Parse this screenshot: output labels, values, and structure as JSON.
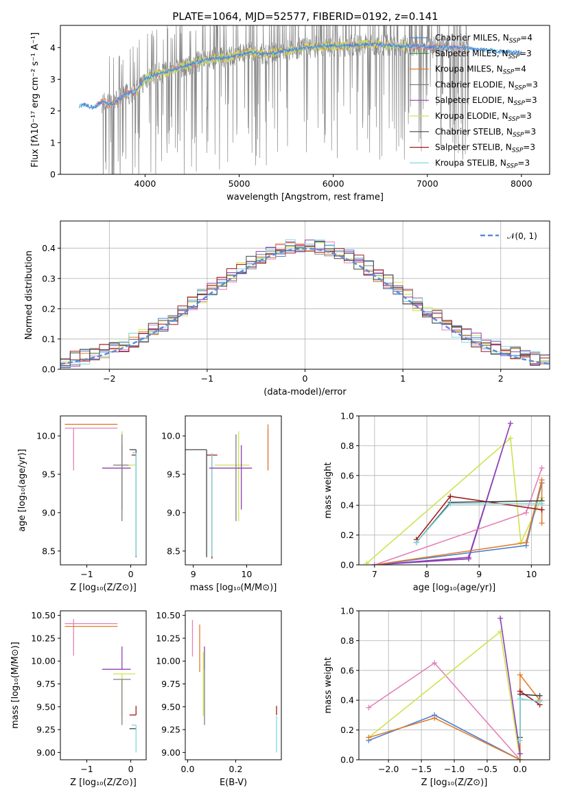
{
  "title": "PLATE=1064, MJD=52577, FIBERID=0192, z=0.141",
  "colors": {
    "chabrier_miles": "#4f7fd0",
    "salpeter_miles": "#2b8a2b",
    "kroupa_miles": "#e07d2c",
    "chabrier_elodie": "#7f7f7f",
    "salpeter_elodie": "#8d3fb4",
    "kroupa_elodie": "#cde34e",
    "chabrier_stelib": "#444444",
    "salpeter_stelib": "#a01818",
    "kroupa_stelib": "#7ed7df",
    "pink": "#e57fb9",
    "normal": "#5b8bd5",
    "grid": "#b0b0b0"
  },
  "chart_data": [
    {
      "id": "spectrum",
      "type": "line",
      "xlabel": "wavelength [Angstrom, rest frame]",
      "ylabel": "Flux [fλ10⁻¹⁷ erg cm⁻² s⁻¹ A⁻¹]",
      "xlim": [
        3100,
        8300
      ],
      "ylim": [
        0,
        4.7
      ],
      "xticks": [
        4000,
        5000,
        6000,
        7000,
        8000
      ],
      "yticks": [
        0,
        1,
        2,
        3,
        4
      ],
      "legend": [
        {
          "main": "Chabrier MILES, N",
          "sub": "SSP",
          "rest": "=4"
        },
        {
          "main": "Salpeter MILES, N",
          "sub": "SSP",
          "rest": "=3"
        },
        {
          "main": "Kroupa MILES, N",
          "sub": "SSP",
          "rest": "=4"
        },
        {
          "main": "Chabrier ELODIE, N",
          "sub": "SSP",
          "rest": "=3"
        },
        {
          "main": "Salpeter ELODIE, N",
          "sub": "SSP",
          "rest": "=3"
        },
        {
          "main": "Kroupa ELODIE, N",
          "sub": "SSP",
          "rest": "=3"
        },
        {
          "main": "Chabrier STELIB, N",
          "sub": "SSP",
          "rest": "=3"
        },
        {
          "main": "Salpeter STELIB, N",
          "sub": "SSP",
          "rest": "=3"
        },
        {
          "main": "Kroupa STELIB, N",
          "sub": "SSP",
          "rest": "=3"
        }
      ],
      "legend_position": "upper right",
      "continuum": [
        [
          3300,
          2.15
        ],
        [
          3350,
          2.2
        ],
        [
          3450,
          2.1
        ],
        [
          3550,
          2.3
        ],
        [
          3650,
          2.2
        ],
        [
          3800,
          2.55
        ],
        [
          3900,
          2.6
        ],
        [
          4000,
          3.0
        ],
        [
          4100,
          3.15
        ],
        [
          4300,
          3.3
        ],
        [
          4500,
          3.5
        ],
        [
          4700,
          3.65
        ],
        [
          4900,
          3.7
        ],
        [
          5100,
          3.85
        ],
        [
          5300,
          3.8
        ],
        [
          5500,
          3.9
        ],
        [
          5700,
          4.0
        ],
        [
          5900,
          4.05
        ],
        [
          6100,
          4.05
        ],
        [
          6300,
          4.1
        ],
        [
          6500,
          4.1
        ],
        [
          6700,
          4.05
        ],
        [
          6900,
          4.05
        ],
        [
          7100,
          4.0
        ],
        [
          7300,
          4.0
        ],
        [
          7500,
          3.95
        ],
        [
          7700,
          3.9
        ],
        [
          7900,
          3.85
        ],
        [
          8000,
          3.85
        ]
      ]
    },
    {
      "id": "residuals",
      "type": "histogram",
      "xlabel": "(data-model)/error",
      "ylabel": "Normed distribution",
      "xlim": [
        -2.5,
        2.5
      ],
      "ylim": [
        0,
        0.49
      ],
      "xticks": [
        -2,
        -1,
        0,
        1,
        2
      ],
      "yticks": [
        0.0,
        0.1,
        0.2,
        0.3,
        0.4
      ],
      "legend": "𝒩(0, 1)",
      "legend_position": "upper right",
      "grid": true,
      "bin_width": 0.1,
      "base_values": [
        0.02,
        0.025,
        0.03,
        0.035,
        0.04,
        0.05,
        0.055,
        0.06,
        0.065,
        0.075,
        0.09,
        0.1,
        0.12,
        0.13,
        0.15,
        0.17,
        0.18,
        0.2,
        0.215,
        0.235,
        0.25,
        0.27,
        0.29,
        0.31,
        0.32,
        0.34,
        0.35,
        0.37,
        0.38,
        0.39,
        0.4,
        0.41,
        0.405,
        0.4,
        0.395,
        0.39,
        0.38,
        0.36,
        0.35,
        0.33,
        0.31,
        0.29,
        0.27,
        0.25,
        0.23,
        0.21,
        0.19,
        0.17,
        0.15,
        0.13,
        0.115,
        0.1,
        0.09,
        0.08,
        0.07,
        0.06,
        0.05,
        0.045,
        0.04,
        0.035,
        0.03,
        0.03,
        0.025,
        0.025,
        0.02,
        0.02,
        0.02,
        0.02,
        0.02,
        0.02,
        0.02,
        0.02,
        0.02,
        0.02,
        0.02,
        0.02,
        0.02,
        0.02,
        0.02,
        0.02
      ]
    },
    {
      "id": "age_vs_Z",
      "type": "errorbar",
      "xlabel": "Z [log₁₀(Z/Z⊙)]",
      "ylabel": "age  [log₁₀(age/yr)]",
      "xlim": [
        -1.6,
        0.35
      ],
      "ylim": [
        8.32,
        10.26
      ],
      "xticks": [
        -1,
        0
      ],
      "yticks": [
        8.5,
        9.0,
        9.5,
        10.0
      ],
      "points": [
        {
          "c": "pink",
          "x": -1.3,
          "xerr": [
            0.2,
            1.0
          ],
          "y": 10.1,
          "yerr": [
            0.55,
            0.0
          ]
        },
        {
          "c": "kroupa_miles",
          "x": -1.3,
          "xerr": [
            0.2,
            1.0
          ],
          "y": 10.15,
          "yerr": [
            0.0,
            0.0
          ]
        },
        {
          "c": "kroupa_elodie",
          "x": -0.2,
          "xerr": [
            0.2,
            0.3
          ],
          "y": 9.62,
          "yerr": [
            0.73,
            0.44
          ]
        },
        {
          "c": "salpeter_elodie",
          "x": -0.2,
          "xerr": [
            0.45,
            0.2
          ],
          "y": 9.58,
          "yerr": [
            0.54,
            0.3
          ]
        },
        {
          "c": "chabrier_elodie",
          "x": -0.2,
          "xerr": [
            0.2,
            0.15
          ],
          "y": 9.62,
          "yerr": [
            0.73,
            0.4
          ]
        },
        {
          "c": "chabrier_stelib",
          "x": 0.12,
          "xerr": [
            0.15,
            0.0
          ],
          "y": 9.82,
          "yerr": [
            1.4,
            0.0
          ]
        },
        {
          "c": "salpeter_stelib",
          "x": 0.12,
          "xerr": [
            0.1,
            0.0
          ],
          "y": 9.75,
          "yerr": [
            0.0,
            0.0
          ]
        },
        {
          "c": "kroupa_stelib",
          "x": 0.12,
          "xerr": [
            0.08,
            0.0
          ],
          "y": 9.78,
          "yerr": [
            1.35,
            0.0
          ]
        }
      ]
    },
    {
      "id": "age_vs_mass",
      "type": "errorbar",
      "xlabel": "mass [log₁₀(M/M⊙)]",
      "xlim": [
        8.85,
        10.65
      ],
      "ylim": [
        8.32,
        10.26
      ],
      "xticks": [
        9,
        10
      ],
      "yticks": [
        8.5,
        9.0,
        9.5,
        10.0
      ],
      "points": [
        {
          "c": "chabrier_stelib",
          "x": 9.25,
          "xerr": [
            0.0,
            0.0
          ],
          "y": 9.82,
          "yerr": [
            1.4,
            0.0
          ]
        },
        {
          "c": "salpeter_stelib",
          "x": 9.35,
          "xerr": [
            0.1,
            0.1
          ],
          "y": 9.75,
          "yerr": [
            1.35,
            0.0
          ]
        },
        {
          "c": "kroupa_stelib",
          "x": 9.35,
          "xerr": [
            0.0,
            0.0
          ],
          "y": 9.78,
          "yerr": [
            1.35,
            0.0
          ]
        },
        {
          "c": "chabrier_stelib",
          "x": 9.25,
          "xerr": [
            0.45,
            0.0
          ],
          "y": 9.82,
          "yerr": [
            0.0,
            0.0
          ]
        },
        {
          "c": "kroupa_elodie",
          "x": 9.85,
          "xerr": [
            0.45,
            0.2
          ],
          "y": 9.62,
          "yerr": [
            0.73,
            0.44
          ]
        },
        {
          "c": "salpeter_elodie",
          "x": 9.9,
          "xerr": [
            0.6,
            0.2
          ],
          "y": 9.58,
          "yerr": [
            0.54,
            0.3
          ]
        },
        {
          "c": "chabrier_elodie",
          "x": 9.8,
          "xerr": [
            0.0,
            0.0
          ],
          "y": 9.62,
          "yerr": [
            0.73,
            0.4
          ]
        },
        {
          "c": "pink",
          "x": 10.4,
          "xerr": [
            0.0,
            0.0
          ],
          "y": 10.1,
          "yerr": [
            0.55,
            0.0
          ]
        },
        {
          "c": "kroupa_miles",
          "x": 10.4,
          "xerr": [
            0.0,
            0.0
          ],
          "y": 10.15,
          "yerr": [
            0.6,
            0.0
          ]
        }
      ]
    },
    {
      "id": "weight_vs_age",
      "type": "line",
      "xlabel": "age  [log₁₀(age/yr)]",
      "ylabel": "mass weight",
      "xlim": [
        6.7,
        10.35
      ],
      "ylim": [
        0,
        1.0
      ],
      "xticks": [
        7,
        8,
        9,
        10
      ],
      "yticks": [
        0.0,
        0.2,
        0.4,
        0.6,
        0.8,
        1.0
      ],
      "grid": true,
      "series": [
        {
          "c": "kroupa_elodie",
          "pts": [
            [
              6.85,
              0.01
            ],
            [
              9.6,
              0.85
            ],
            [
              9.8,
              0.15
            ],
            [
              10.2,
              0.45
            ]
          ]
        },
        {
          "c": "salpeter_elodie",
          "pts": [
            [
              7.0,
              0.0
            ],
            [
              8.8,
              0.04
            ],
            [
              9.6,
              0.95
            ],
            [
              8.8,
              0.05
            ],
            [
              7.0,
              0.0
            ]
          ]
        },
        {
          "c": "chabrier_miles",
          "pts": [
            [
              7.0,
              0.0
            ],
            [
              9.9,
              0.13
            ],
            [
              10.2,
              0.55
            ]
          ]
        },
        {
          "c": "kroupa_miles",
          "pts": [
            [
              7.0,
              0.0
            ],
            [
              9.9,
              0.15
            ],
            [
              10.2,
              0.57
            ],
            [
              10.2,
              0.28
            ]
          ]
        },
        {
          "c": "pink",
          "pts": [
            [
              7.0,
              0.0
            ],
            [
              9.9,
              0.35
            ],
            [
              10.2,
              0.65
            ]
          ]
        },
        {
          "c": "salpeter_stelib",
          "pts": [
            [
              7.8,
              0.17
            ],
            [
              8.45,
              0.46
            ],
            [
              10.2,
              0.37
            ]
          ]
        },
        {
          "c": "chabrier_stelib",
          "pts": [
            [
              7.8,
              0.15
            ],
            [
              8.45,
              0.42
            ],
            [
              10.2,
              0.43
            ]
          ]
        },
        {
          "c": "kroupa_stelib",
          "pts": [
            [
              7.8,
              0.15
            ],
            [
              8.45,
              0.41
            ],
            [
              10.2,
              0.41
            ]
          ]
        }
      ]
    },
    {
      "id": "mass_vs_Z",
      "type": "errorbar",
      "xlabel": "Z [log₁₀(Z/Z⊙)]",
      "ylabel": "mass [log₁₀(M/M⊙)]",
      "xlim": [
        -1.6,
        0.35
      ],
      "ylim": [
        8.92,
        10.55
      ],
      "xticks": [
        -1,
        0
      ],
      "yticks": [
        9.0,
        9.25,
        9.5,
        9.75,
        10.0,
        10.25,
        10.5
      ],
      "points": [
        {
          "c": "pink",
          "x": -1.3,
          "xerr": [
            0.2,
            1.0
          ],
          "y": 10.41,
          "yerr": [
            0.35,
            0.05
          ]
        },
        {
          "c": "kroupa_miles",
          "x": -1.3,
          "xerr": [
            0.2,
            1.0
          ],
          "y": 10.38,
          "yerr": [
            0.0,
            0.0
          ]
        },
        {
          "c": "salpeter_elodie",
          "x": -0.2,
          "xerr": [
            0.45,
            0.2
          ],
          "y": 9.91,
          "yerr": [
            0.0,
            0.25
          ]
        },
        {
          "c": "kroupa_elodie",
          "x": -0.2,
          "xerr": [
            0.2,
            0.3
          ],
          "y": 9.86,
          "yerr": [
            0.47,
            0.0
          ]
        },
        {
          "c": "chabrier_elodie",
          "x": -0.2,
          "xerr": [
            0.2,
            0.2
          ],
          "y": 9.8,
          "yerr": [
            0.5,
            0.0
          ]
        },
        {
          "c": "salpeter_stelib",
          "x": 0.12,
          "xerr": [
            0.15,
            0.0
          ],
          "y": 9.41,
          "yerr": [
            0.0,
            0.1
          ]
        },
        {
          "c": "chabrier_stelib",
          "x": 0.12,
          "xerr": [
            0.15,
            0.0
          ],
          "y": 9.26,
          "yerr": [
            0.0,
            0.0
          ]
        },
        {
          "c": "kroupa_stelib",
          "x": 0.12,
          "xerr": [
            0.1,
            0.0
          ],
          "y": 9.3,
          "yerr": [
            0.3,
            0.0
          ]
        }
      ]
    },
    {
      "id": "mass_vs_ebv",
      "type": "errorbar",
      "xlabel": "E(B-V)",
      "xlim": [
        -0.01,
        0.39
      ],
      "ylim": [
        8.92,
        10.55
      ],
      "xticks": [
        0.0,
        0.2
      ],
      "yticks": [
        9.0,
        9.25,
        9.5,
        9.75,
        10.0,
        10.25,
        10.5
      ],
      "points": [
        {
          "c": "pink",
          "x": 0.02,
          "xerr": [
            0,
            0
          ],
          "y": 10.25,
          "yerr": [
            0.2,
            0.2
          ]
        },
        {
          "c": "kroupa_miles",
          "x": 0.05,
          "xerr": [
            0,
            0
          ],
          "y": 10.15,
          "yerr": [
            0.27,
            0.25
          ]
        },
        {
          "c": "kroupa_elodie",
          "x": 0.065,
          "xerr": [
            0,
            0
          ],
          "y": 9.8,
          "yerr": [
            0.4,
            0.3
          ]
        },
        {
          "c": "salpeter_elodie",
          "x": 0.07,
          "xerr": [
            0,
            0
          ],
          "y": 9.91,
          "yerr": [
            0.0,
            0.25
          ]
        },
        {
          "c": "chabrier_elodie",
          "x": 0.07,
          "xerr": [
            0,
            0
          ],
          "y": 9.7,
          "yerr": [
            0.4,
            0.4
          ]
        },
        {
          "c": "salpeter_stelib",
          "x": 0.37,
          "xerr": [
            0,
            0
          ],
          "y": 9.41,
          "yerr": [
            0.0,
            0.1
          ]
        },
        {
          "c": "kroupa_stelib",
          "x": 0.37,
          "xerr": [
            0,
            0
          ],
          "y": 9.2,
          "yerr": [
            0.2,
            0.2
          ]
        }
      ]
    },
    {
      "id": "weight_vs_Z",
      "type": "line",
      "xlabel": "Z [log₁₀(Z/Z⊙)]",
      "ylabel": "mass weight",
      "xlim": [
        -2.45,
        0.45
      ],
      "ylim": [
        0,
        1.0
      ],
      "xticks": [
        -2.0,
        -1.5,
        -1.0,
        -0.5,
        0.0
      ],
      "yticks": [
        0.0,
        0.2,
        0.4,
        0.6,
        0.8,
        1.0
      ],
      "grid": true,
      "series": [
        {
          "c": "pink",
          "pts": [
            [
              -2.3,
              0.35
            ],
            [
              -1.3,
              0.65
            ],
            [
              0.0,
              0.0
            ]
          ]
        },
        {
          "c": "kroupa_elodie",
          "pts": [
            [
              -2.3,
              0.15
            ],
            [
              -0.3,
              0.86
            ],
            [
              0.0,
              0.0
            ]
          ]
        },
        {
          "c": "chabrier_miles",
          "pts": [
            [
              -2.3,
              0.13
            ],
            [
              -1.3,
              0.3
            ],
            [
              0.0,
              0.0
            ]
          ]
        },
        {
          "c": "kroupa_miles",
          "pts": [
            [
              -2.3,
              0.15
            ],
            [
              -1.3,
              0.28
            ],
            [
              0.0,
              0.0
            ],
            [
              0.0,
              0.57
            ],
            [
              0.3,
              0.4
            ]
          ]
        },
        {
          "c": "salpeter_elodie",
          "pts": [
            [
              -0.3,
              0.95
            ],
            [
              0.0,
              0.04
            ]
          ]
        },
        {
          "c": "chabrier_stelib",
          "pts": [
            [
              0.0,
              0.15
            ],
            [
              0.0,
              0.44
            ],
            [
              0.3,
              0.43
            ]
          ]
        },
        {
          "c": "salpeter_stelib",
          "pts": [
            [
              0.0,
              0.46
            ],
            [
              0.3,
              0.37
            ]
          ]
        },
        {
          "c": "kroupa_stelib",
          "pts": [
            [
              0.0,
              0.13
            ],
            [
              0.0,
              0.41
            ],
            [
              0.3,
              0.39
            ]
          ]
        }
      ]
    }
  ]
}
